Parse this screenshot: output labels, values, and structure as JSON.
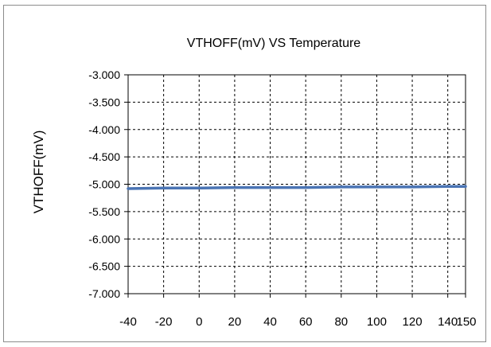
{
  "chart_data": {
    "type": "line",
    "title": "VTHOFF(mV) VS Temperature",
    "xlabel": "",
    "ylabel": "VTHOFF(mV)",
    "xlim": [
      -40,
      150
    ],
    "ylim": [
      -7.0,
      -3.0
    ],
    "x_ticks": [
      -40,
      -20,
      0,
      20,
      40,
      60,
      80,
      100,
      120,
      140,
      150
    ],
    "x_tick_labels": [
      "-40",
      "-20",
      "0",
      "20",
      "40",
      "60",
      "80",
      "100",
      "120",
      "140",
      "150"
    ],
    "y_ticks": [
      -3.0,
      -3.5,
      -4.0,
      -4.5,
      -5.0,
      -5.5,
      -6.0,
      -6.5,
      -7.0
    ],
    "y_tick_labels": [
      "-3.000",
      "-3.500",
      "-4.000",
      "-4.500",
      "-5.000",
      "-5.500",
      "-6.000",
      "-6.500",
      "-7.000"
    ],
    "grid": true,
    "grid_style": "dashed",
    "legend": "none",
    "series_color": "#4a74b4",
    "series": [
      {
        "x": [
          -40,
          -20,
          0,
          20,
          40,
          60,
          80,
          100,
          120,
          140,
          150
        ],
        "y": [
          -5.08,
          -5.07,
          -5.07,
          -5.06,
          -5.06,
          -5.06,
          -5.05,
          -5.05,
          -5.05,
          -5.04,
          -5.04
        ]
      }
    ]
  }
}
